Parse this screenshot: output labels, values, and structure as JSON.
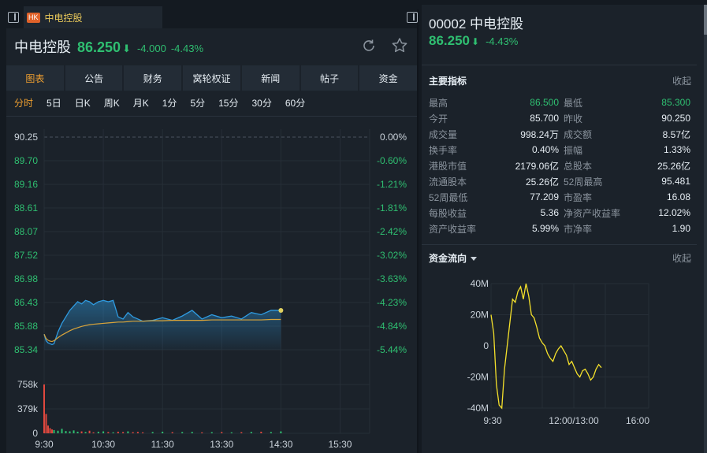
{
  "tab": {
    "badge": "HK",
    "title": "中电控股"
  },
  "quote": {
    "name": "中电控股",
    "price": "86.250",
    "change": "-4.000",
    "change_pct": "-4.43%"
  },
  "nav_tabs": [
    "图表",
    "公告",
    "财务",
    "窝轮权证",
    "新闻",
    "帖子",
    "资金"
  ],
  "periods": [
    "分时",
    "5日",
    "日K",
    "周K",
    "月K",
    "1分",
    "5分",
    "15分",
    "30分",
    "60分"
  ],
  "price_axis": [
    "90.25",
    "89.70",
    "89.16",
    "88.61",
    "88.07",
    "87.52",
    "86.98",
    "86.43",
    "85.88",
    "85.34"
  ],
  "pct_axis": [
    "0.00%",
    "-0.60%",
    "-1.21%",
    "-1.81%",
    "-2.42%",
    "-3.02%",
    "-3.63%",
    "-4.23%",
    "-4.84%",
    "-5.44%"
  ],
  "volume_axis": [
    "758k",
    "379k",
    "0"
  ],
  "time_axis": [
    "9:30",
    "10:30",
    "11:30",
    "13:30",
    "14:30",
    "15:30"
  ],
  "colors": {
    "up": "#2fbf71",
    "accent": "#f0a030",
    "price_line": "#2f9be0",
    "avg_line": "#d9a43a",
    "flow_line": "#f5e12b",
    "volume_red": "#e0483e",
    "volume_green": "#2fbf71"
  },
  "right": {
    "code": "00002",
    "name": "中电控股",
    "price": "86.250",
    "change_pct": "-4.43%",
    "indicators_title": "主要指标",
    "collapse_label": "收起",
    "stats": [
      {
        "l1": "最高",
        "v1": "86.500",
        "l2": "最低",
        "v2": "85.300"
      },
      {
        "l1": "今开",
        "v1": "85.700",
        "l2": "昨收",
        "v2": "90.250"
      },
      {
        "l1": "成交量",
        "v1": "998.24万",
        "l2": "成交额",
        "v2": "8.57亿"
      },
      {
        "l1": "换手率",
        "v1": "0.40%",
        "l2": "振幅",
        "v2": "1.33%"
      },
      {
        "l1": "港股市值",
        "v1": "2179.06亿",
        "l2": "总股本",
        "v2": "25.26亿"
      },
      {
        "l1": "流通股本",
        "v1": "25.26亿",
        "l2": "52周最高",
        "v2": "95.481"
      },
      {
        "l1": "52周最低",
        "v1": "77.209",
        "l2": "市盈率",
        "v2": "16.08"
      },
      {
        "l1": "每股收益",
        "v1": "5.36",
        "l2": "净资产收益率",
        "v2": "12.02%"
      },
      {
        "l1": "资产收益率",
        "v1": "5.99%",
        "l2": "市净率",
        "v2": "1.90"
      }
    ],
    "flow_title": "资金流向",
    "flow_collapse": "收起"
  },
  "chart_data": [
    {
      "type": "line",
      "title": "",
      "x": [
        0,
        2,
        4,
        6,
        8,
        10,
        14,
        18,
        22,
        26,
        30,
        34,
        38,
        42,
        46,
        50,
        55,
        60,
        65,
        70,
        75,
        80,
        85,
        90,
        95,
        100,
        110,
        120,
        130,
        140,
        150,
        160,
        170,
        180,
        190,
        200,
        210,
        220,
        230,
        240
      ],
      "x_labels": [
        "9:30",
        "10:30",
        "11:30",
        "13:30",
        "14:30",
        "15:30"
      ],
      "price": [
        85.7,
        85.55,
        85.5,
        85.48,
        85.46,
        85.48,
        85.75,
        85.95,
        86.1,
        86.25,
        86.35,
        86.45,
        86.4,
        86.48,
        86.45,
        86.38,
        86.45,
        86.48,
        86.45,
        86.48,
        86.1,
        86.05,
        86.2,
        86.1,
        86.05,
        86.0,
        86.02,
        86.08,
        86.02,
        86.12,
        86.25,
        86.05,
        86.15,
        86.08,
        86.12,
        86.05,
        86.2,
        86.15,
        86.25,
        86.25
      ],
      "avg": [
        85.7,
        85.6,
        85.56,
        85.54,
        85.53,
        85.55,
        85.62,
        85.68,
        85.73,
        85.78,
        85.82,
        85.85,
        85.88,
        85.9,
        85.92,
        85.93,
        85.94,
        85.95,
        85.96,
        85.97,
        85.98,
        85.98,
        85.99,
        86.0,
        86.0,
        86.0,
        86.01,
        86.01,
        86.02,
        86.02,
        86.02,
        86.02,
        86.03,
        86.03,
        86.03,
        86.03,
        86.03,
        86.03,
        86.04,
        86.04
      ],
      "ylim": [
        85.34,
        90.25
      ],
      "prev_close": 90.25,
      "volume": [
        758,
        300,
        120,
        80,
        60,
        50,
        40,
        70,
        35,
        30,
        45,
        25,
        30,
        20,
        40,
        15,
        25,
        30,
        20,
        15,
        25,
        20,
        30,
        18,
        22,
        15,
        20,
        25,
        18,
        20,
        22,
        15,
        18,
        20,
        15,
        18,
        22,
        25,
        20,
        30
      ],
      "volume_unit": "k",
      "volume_ylim": [
        0,
        758
      ]
    },
    {
      "type": "line",
      "title": "资金流向",
      "x_labels": [
        "9:30",
        "12:00/13:00",
        "16:00"
      ],
      "y_labels": [
        "40M",
        "20M",
        "0",
        "-20M",
        "-40M"
      ],
      "ylim": [
        -40,
        40
      ],
      "values": [
        20,
        8,
        -25,
        -38,
        -40,
        -15,
        0,
        15,
        30,
        28,
        35,
        38,
        30,
        40,
        32,
        20,
        18,
        12,
        5,
        2,
        0,
        -5,
        -8,
        -10,
        -5,
        -2,
        0,
        -3,
        -6,
        -12,
        -10,
        -14,
        -18,
        -20,
        -16,
        -15,
        -18,
        -22,
        -20,
        -15,
        -12,
        -14
      ]
    }
  ]
}
